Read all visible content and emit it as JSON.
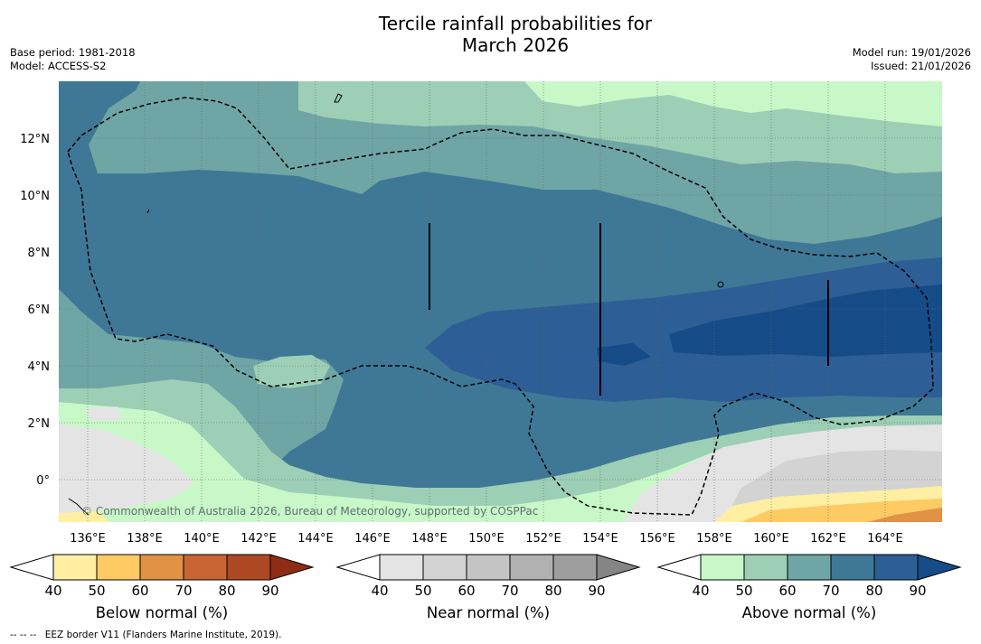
{
  "header": {
    "title_line1": "Tercile rainfall probabilities for",
    "title_line2": "March 2026",
    "base_period": "Base period: 1981-2018",
    "model": "Model: ACCESS-S2",
    "model_run": "Model run: 19/01/2026",
    "issued": "Issued: 21/01/2026"
  },
  "map": {
    "copyright": "© Commonwealth of Australia 2026, Bureau of Meteorology, supported by COSPPac"
  },
  "chart_data": {
    "type": "heatmap",
    "title": "Tercile rainfall probabilities for March 2026",
    "x_axis": {
      "range": [
        134.5,
        165.5
      ],
      "ticks": [
        136,
        138,
        140,
        142,
        144,
        146,
        148,
        150,
        152,
        154,
        156,
        158,
        160,
        162,
        164
      ],
      "tick_labels": [
        "136°E",
        "138°E",
        "140°E",
        "142°E",
        "144°E",
        "146°E",
        "148°E",
        "150°E",
        "152°E",
        "154°E",
        "156°E",
        "158°E",
        "160°E",
        "162°E",
        "164°E"
      ]
    },
    "y_axis": {
      "range": [
        -1.5,
        14
      ],
      "ticks": [
        0,
        2,
        4,
        6,
        8,
        10,
        12
      ],
      "tick_labels": [
        "0°",
        "2°N",
        "4°N",
        "6°N",
        "8°N",
        "10°N",
        "12°N"
      ]
    },
    "grid": true,
    "regions": [
      {
        "category": "above",
        "level": 50,
        "desc": "north band"
      },
      {
        "category": "above",
        "level": 60
      },
      {
        "category": "above",
        "level": 70
      },
      {
        "category": "above",
        "level": 80,
        "desc": "east core near 4-6°N"
      },
      {
        "category": "above",
        "level": 90
      },
      {
        "category": "near",
        "level": 50,
        "desc": "south-east"
      },
      {
        "category": "below",
        "level": 50,
        "desc": "south-east corner"
      },
      {
        "category": "below",
        "level": 70
      }
    ],
    "colorbars": [
      {
        "label": "Below normal (%)",
        "ticks": [
          "40",
          "50",
          "60",
          "70",
          "80",
          "90"
        ],
        "colors": [
          "#ffffff",
          "#ffefa3",
          "#fdca63",
          "#e09245",
          "#c96535",
          "#ac4823",
          "#8f2c14"
        ]
      },
      {
        "label": "Near normal (%)",
        "ticks": [
          "40",
          "50",
          "60",
          "70",
          "80",
          "90"
        ],
        "colors": [
          "#ffffff",
          "#e4e4e4",
          "#d3d3d3",
          "#c4c4c4",
          "#b1b1b1",
          "#9e9e9e",
          "#858585"
        ]
      },
      {
        "label": "Above normal (%)",
        "ticks": [
          "40",
          "50",
          "60",
          "70",
          "80",
          "90"
        ],
        "colors": [
          "#ffffff",
          "#c8f8c8",
          "#9ccfb5",
          "#6fa5a5",
          "#3f7896",
          "#2d5e95",
          "#154c88"
        ]
      }
    ]
  },
  "footer": {
    "legend_line_symbol": "--  --  --",
    "legend_text": "EEZ border V11 (Flanders Marine Institute, 2019)."
  }
}
